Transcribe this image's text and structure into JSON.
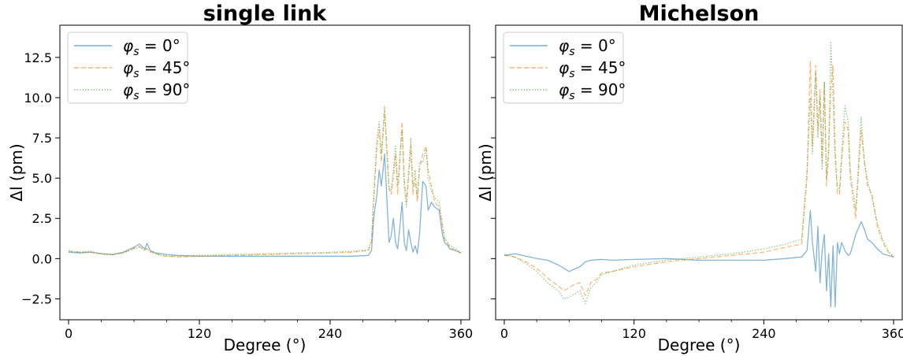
{
  "colors": {
    "series": [
      "#1f77b4",
      "#ff7f0e",
      "#2ca02c"
    ]
  },
  "chart_data": [
    {
      "type": "line",
      "title": "single link",
      "xlabel": "Degree (°)",
      "ylabel": "Δl (pm)",
      "xlim": [
        -8,
        368
      ],
      "ylim": [
        -3.8,
        14.5
      ],
      "xticks": [
        0,
        120,
        240,
        360
      ],
      "xtick_labels": [
        "0",
        "120",
        "240",
        "360"
      ],
      "yticks": [
        -2.5,
        0.0,
        2.5,
        5.0,
        7.5,
        10.0,
        12.5
      ],
      "ytick_labels": [
        "−2.5",
        "0.0",
        "2.5",
        "5.0",
        "7.5",
        "10.0",
        "12.5"
      ],
      "grid": false,
      "legend": "top-left",
      "series": [
        {
          "name": "φs = 0°",
          "style": "solid",
          "x": [
            0,
            10,
            20,
            30,
            40,
            50,
            60,
            65,
            70,
            72,
            75,
            80,
            85,
            90,
            100,
            120,
            150,
            180,
            210,
            240,
            260,
            275,
            278,
            280,
            283,
            285,
            287,
            290,
            292,
            294,
            296,
            298,
            300,
            302,
            304,
            306,
            308,
            310,
            312,
            314,
            316,
            318,
            320,
            322,
            325,
            328,
            330,
            333,
            336,
            340,
            343,
            345,
            348,
            350,
            355,
            360
          ],
          "y": [
            0.4,
            0.35,
            0.4,
            0.3,
            0.25,
            0.4,
            0.7,
            0.9,
            0.6,
            0.95,
            0.5,
            0.35,
            0.3,
            0.25,
            0.2,
            0.15,
            0.15,
            0.15,
            0.15,
            0.15,
            0.15,
            0.2,
            0.5,
            2.5,
            4.0,
            5.5,
            4.5,
            6.5,
            3.8,
            1.0,
            1.4,
            2.5,
            1.0,
            0.6,
            2.0,
            3.5,
            1.0,
            0.5,
            1.8,
            1.0,
            0.4,
            0.8,
            0.3,
            1.5,
            4.8,
            4.5,
            3.0,
            3.5,
            3.2,
            3.0,
            1.5,
            1.0,
            0.8,
            0.6,
            0.5,
            0.35
          ]
        },
        {
          "name": "φs = 45°",
          "style": "dashed",
          "x": [
            0,
            10,
            20,
            30,
            40,
            50,
            60,
            65,
            70,
            72,
            75,
            80,
            85,
            90,
            100,
            120,
            150,
            180,
            210,
            240,
            260,
            275,
            278,
            280,
            283,
            285,
            287,
            290,
            292,
            294,
            296,
            298,
            300,
            302,
            304,
            306,
            308,
            310,
            312,
            314,
            316,
            318,
            320,
            322,
            325,
            328,
            330,
            333,
            336,
            340,
            343,
            345,
            348,
            350,
            355,
            360
          ],
          "y": [
            0.45,
            0.4,
            0.4,
            0.3,
            0.25,
            0.35,
            0.65,
            0.75,
            0.55,
            0.65,
            0.45,
            0.3,
            0.2,
            0.15,
            0.1,
            0.15,
            0.2,
            0.25,
            0.3,
            0.35,
            0.4,
            0.5,
            1.0,
            3.5,
            7.0,
            8.0,
            6.0,
            9.5,
            7.0,
            4.5,
            4.0,
            5.0,
            6.5,
            4.0,
            6.0,
            8.5,
            5.0,
            3.5,
            5.0,
            7.0,
            4.0,
            5.0,
            3.5,
            5.5,
            6.5,
            7.0,
            5.5,
            4.5,
            3.5,
            3.2,
            2.0,
            1.2,
            0.9,
            0.7,
            0.5,
            0.35
          ]
        },
        {
          "name": "φs = 90°",
          "style": "dotted",
          "x": [
            0,
            10,
            20,
            30,
            40,
            50,
            60,
            65,
            70,
            72,
            75,
            80,
            85,
            90,
            100,
            120,
            150,
            180,
            210,
            240,
            260,
            275,
            278,
            280,
            283,
            285,
            287,
            290,
            292,
            294,
            296,
            298,
            300,
            302,
            304,
            306,
            308,
            310,
            312,
            314,
            316,
            318,
            320,
            322,
            325,
            328,
            330,
            333,
            336,
            340,
            343,
            345,
            348,
            350,
            355,
            360
          ],
          "y": [
            0.5,
            0.4,
            0.45,
            0.3,
            0.25,
            0.35,
            0.6,
            0.7,
            0.5,
            0.6,
            0.4,
            0.3,
            0.2,
            0.15,
            0.15,
            0.2,
            0.25,
            0.3,
            0.35,
            0.4,
            0.45,
            0.55,
            1.2,
            4.0,
            7.5,
            8.5,
            6.5,
            9.2,
            6.5,
            4.2,
            4.2,
            5.5,
            7.0,
            4.5,
            6.5,
            8.0,
            4.5,
            3.2,
            5.5,
            7.5,
            4.5,
            5.5,
            3.8,
            6.0,
            6.0,
            6.8,
            5.0,
            4.2,
            3.8,
            3.5,
            2.2,
            1.3,
            1.0,
            0.8,
            0.6,
            0.4
          ]
        }
      ]
    },
    {
      "type": "line",
      "title": "Michelson",
      "xlabel": "Degree (°)",
      "ylabel": "Δl (pm)",
      "xlim": [
        -8,
        368
      ],
      "ylim": [
        -3.8,
        14.5
      ],
      "xticks": [
        0,
        120,
        240,
        360
      ],
      "xtick_labels": [
        "0",
        "120",
        "240",
        "360"
      ],
      "yticks": [
        -2.5,
        0.0,
        2.5,
        5.0,
        7.5,
        10.0,
        12.5
      ],
      "ytick_labels": [
        "",
        "",
        "",
        "",
        "",
        "",
        ""
      ],
      "grid": false,
      "legend": "top-left",
      "series": [
        {
          "name": "φs = 0°",
          "style": "solid",
          "x": [
            0,
            10,
            20,
            30,
            40,
            50,
            60,
            70,
            75,
            80,
            90,
            100,
            120,
            150,
            180,
            210,
            240,
            260,
            275,
            280,
            283,
            285,
            288,
            290,
            292,
            294,
            296,
            298,
            300,
            302,
            304,
            306,
            308,
            310,
            312,
            315,
            318,
            320,
            325,
            330,
            333,
            336,
            340,
            345,
            350,
            355,
            360
          ],
          "y": [
            0.2,
            0.3,
            0.15,
            0.0,
            -0.1,
            -0.4,
            -0.8,
            -0.5,
            -0.2,
            -0.1,
            -0.05,
            -0.1,
            -0.05,
            0.0,
            -0.1,
            -0.1,
            -0.1,
            0.0,
            0.1,
            0.5,
            3.0,
            1.0,
            -0.8,
            2.0,
            -1.5,
            0.5,
            1.5,
            -2.0,
            0.3,
            -3.0,
            0.8,
            -3.0,
            1.0,
            0.3,
            1.0,
            0.5,
            0.2,
            0.3,
            1.5,
            2.3,
            1.8,
            1.2,
            1.0,
            0.6,
            0.3,
            0.2,
            0.1
          ]
        },
        {
          "name": "φs = 45°",
          "style": "dashed",
          "x": [
            0,
            10,
            20,
            30,
            40,
            50,
            55,
            60,
            65,
            70,
            75,
            80,
            85,
            90,
            100,
            120,
            150,
            180,
            210,
            240,
            260,
            275,
            280,
            283,
            285,
            288,
            290,
            292,
            294,
            296,
            298,
            300,
            302,
            304,
            306,
            308,
            310,
            312,
            315,
            318,
            320,
            325,
            330,
            333,
            336,
            340,
            345,
            350,
            355,
            360
          ],
          "y": [
            0.2,
            0.1,
            -0.2,
            -0.6,
            -1.2,
            -1.7,
            -2.0,
            -1.8,
            -1.6,
            -1.5,
            -2.3,
            -1.5,
            -1.3,
            -0.9,
            -0.8,
            -0.5,
            -0.2,
            0.0,
            0.2,
            0.4,
            0.7,
            0.9,
            5.0,
            12.3,
            7.0,
            12.0,
            8.0,
            10.5,
            6.0,
            11.0,
            4.5,
            7.0,
            10.5,
            12.0,
            7.0,
            4.0,
            4.0,
            6.0,
            8.5,
            8.0,
            5.0,
            2.5,
            8.0,
            6.0,
            4.5,
            4.0,
            2.0,
            1.0,
            0.4,
            0.1
          ]
        },
        {
          "name": "φs = 90°",
          "style": "dotted",
          "x": [
            0,
            10,
            20,
            30,
            40,
            50,
            55,
            60,
            65,
            70,
            75,
            80,
            85,
            90,
            100,
            120,
            150,
            180,
            210,
            240,
            260,
            275,
            280,
            283,
            285,
            288,
            290,
            292,
            294,
            296,
            298,
            300,
            302,
            304,
            306,
            308,
            310,
            312,
            315,
            318,
            320,
            325,
            330,
            333,
            336,
            340,
            345,
            350,
            355,
            360
          ],
          "y": [
            0.25,
            0.1,
            -0.3,
            -0.8,
            -1.5,
            -2.0,
            -2.5,
            -2.4,
            -2.2,
            -2.0,
            -2.8,
            -1.8,
            -1.5,
            -1.0,
            -0.8,
            -0.4,
            -0.1,
            0.1,
            0.3,
            0.6,
            0.9,
            1.2,
            5.5,
            10.0,
            6.5,
            11.5,
            7.5,
            10.0,
            5.5,
            11.0,
            5.0,
            6.5,
            13.5,
            10.0,
            6.0,
            4.5,
            4.2,
            6.5,
            9.5,
            8.5,
            5.5,
            3.0,
            8.8,
            6.0,
            4.8,
            3.8,
            2.2,
            1.2,
            0.5,
            0.1
          ]
        }
      ]
    }
  ]
}
